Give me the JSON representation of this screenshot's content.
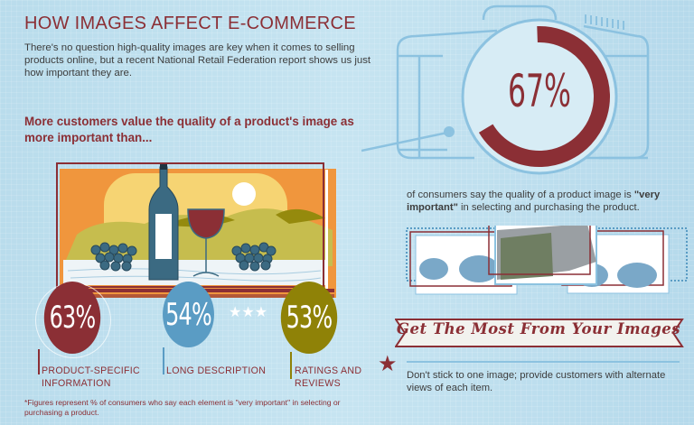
{
  "header": {
    "title": "HOW IMAGES AFFECT E-COMMERCE",
    "intro": "There's no question high-quality images are key when it comes to selling products online, but a recent National Retail Federation report shows us just how important they are.",
    "subheading": "More customers value the quality of a product's image as more important than..."
  },
  "stats": [
    {
      "value": "63%",
      "label_line1": "PRODUCT-SPECIFIC",
      "label_line2": "INFORMATION",
      "color": "#8b2f35"
    },
    {
      "value": "54%",
      "label_line1": "LONG DESCRIPTION",
      "label_line2": "",
      "color": "#5a9cc4"
    },
    {
      "value": "53%",
      "label_line1": "RATINGS AND",
      "label_line2": "REVIEWS",
      "color": "#8f8207"
    }
  ],
  "footnote": "*Figures represent % of consumers who say each element is \"very important\" in selecting or purchasing a product.",
  "headline_stat": {
    "value": "67%",
    "percent": 67,
    "caption_pre": "of consumers say the quality of a product image is ",
    "caption_bold": "\"very important\"",
    "caption_post": " in selecting and purchasing the product.",
    "color": "#8b2f35"
  },
  "tips": {
    "banner": "Get The Most From Your Images",
    "tip1": "Don't stick to one image; provide customers with alternate views of each item."
  },
  "colors": {
    "accent": "#8b2f35",
    "blue": "#5a9cc4",
    "olive": "#8f8207",
    "orange": "#f0963d",
    "background": "#c2e2f0"
  }
}
